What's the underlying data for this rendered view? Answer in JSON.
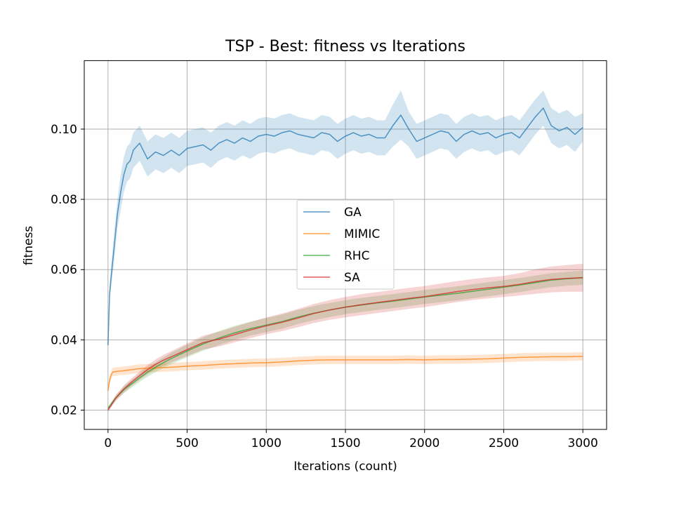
{
  "chart_data": {
    "type": "line",
    "title": "TSP - Best: fitness vs Iterations",
    "xlabel": "Iterations (count)",
    "ylabel": "fitness",
    "xlim": [
      -150,
      3150
    ],
    "ylim": [
      0.0145,
      0.1195
    ],
    "xticks": [
      0,
      500,
      1000,
      1500,
      2000,
      2500,
      3000
    ],
    "xtick_labels": [
      "0",
      "500",
      "1000",
      "1500",
      "2000",
      "2500",
      "3000"
    ],
    "yticks": [
      0.02,
      0.04,
      0.06,
      0.08,
      0.1
    ],
    "ytick_labels": [
      "0.02",
      "0.04",
      "0.06",
      "0.08",
      "0.10"
    ],
    "grid": true,
    "legend_position": "center",
    "series": [
      {
        "name": "GA",
        "color": "#1f77b4",
        "x": [
          0,
          10,
          20,
          40,
          60,
          80,
          100,
          120,
          140,
          160,
          180,
          200,
          250,
          300,
          350,
          400,
          450,
          500,
          550,
          600,
          650,
          700,
          750,
          800,
          850,
          900,
          950,
          1000,
          1050,
          1100,
          1150,
          1200,
          1250,
          1300,
          1350,
          1400,
          1450,
          1500,
          1550,
          1600,
          1650,
          1700,
          1750,
          1800,
          1850,
          1900,
          1950,
          2000,
          2050,
          2100,
          2150,
          2200,
          2250,
          2300,
          2350,
          2400,
          2450,
          2500,
          2550,
          2600,
          2650,
          2700,
          2750,
          2800,
          2850,
          2900,
          2950,
          3000
        ],
        "y": [
          0.0385,
          0.053,
          0.058,
          0.067,
          0.076,
          0.082,
          0.087,
          0.09,
          0.091,
          0.094,
          0.095,
          0.096,
          0.0915,
          0.0935,
          0.0925,
          0.094,
          0.0925,
          0.0945,
          0.095,
          0.0955,
          0.094,
          0.096,
          0.097,
          0.096,
          0.0975,
          0.0965,
          0.098,
          0.0985,
          0.098,
          0.099,
          0.0995,
          0.0985,
          0.098,
          0.0975,
          0.099,
          0.0985,
          0.0965,
          0.098,
          0.099,
          0.098,
          0.0985,
          0.0975,
          0.0975,
          0.101,
          0.104,
          0.1,
          0.0965,
          0.0975,
          0.0985,
          0.0995,
          0.099,
          0.0965,
          0.0985,
          0.0995,
          0.0985,
          0.099,
          0.0975,
          0.0985,
          0.099,
          0.0975,
          0.1005,
          0.1035,
          0.106,
          0.101,
          0.0995,
          0.1005,
          0.0985,
          0.1005
        ],
        "band": [
          0.001,
          0.002,
          0.003,
          0.004,
          0.004,
          0.005,
          0.005,
          0.005,
          0.005,
          0.005,
          0.005,
          0.005,
          0.005,
          0.005,
          0.005,
          0.005,
          0.005,
          0.005,
          0.005,
          0.005,
          0.005,
          0.005,
          0.005,
          0.005,
          0.005,
          0.005,
          0.005,
          0.005,
          0.005,
          0.005,
          0.005,
          0.005,
          0.005,
          0.005,
          0.005,
          0.005,
          0.005,
          0.005,
          0.005,
          0.005,
          0.005,
          0.005,
          0.005,
          0.006,
          0.007,
          0.005,
          0.005,
          0.005,
          0.005,
          0.005,
          0.005,
          0.005,
          0.005,
          0.005,
          0.005,
          0.005,
          0.005,
          0.005,
          0.005,
          0.005,
          0.005,
          0.005,
          0.005,
          0.005,
          0.005,
          0.005,
          0.005,
          0.004
        ]
      },
      {
        "name": "MIMIC",
        "color": "#ff7f0e",
        "x": [
          0,
          10,
          20,
          30,
          50,
          100,
          150,
          200,
          300,
          400,
          500,
          600,
          700,
          800,
          900,
          1000,
          1100,
          1200,
          1300,
          1400,
          1500,
          1600,
          1700,
          1800,
          1900,
          2000,
          2100,
          2200,
          2300,
          2400,
          2500,
          2600,
          2700,
          2800,
          2900,
          3000
        ],
        "y": [
          0.0255,
          0.0285,
          0.03,
          0.0308,
          0.031,
          0.0312,
          0.0315,
          0.0318,
          0.032,
          0.0322,
          0.0325,
          0.0327,
          0.033,
          0.0332,
          0.0334,
          0.0335,
          0.0337,
          0.034,
          0.0342,
          0.0343,
          0.0343,
          0.0343,
          0.0343,
          0.0343,
          0.0344,
          0.0343,
          0.0344,
          0.0344,
          0.0345,
          0.0346,
          0.0348,
          0.035,
          0.0351,
          0.0352,
          0.0352,
          0.0353
        ],
        "band": [
          0.0008,
          0.001,
          0.0012,
          0.0012,
          0.0012,
          0.0012,
          0.0012,
          0.0012,
          0.0012,
          0.0012,
          0.0012,
          0.0012,
          0.0012,
          0.0012,
          0.0012,
          0.0012,
          0.0012,
          0.0012,
          0.0012,
          0.0012,
          0.0012,
          0.0012,
          0.0012,
          0.0012,
          0.0012,
          0.0012,
          0.0012,
          0.0012,
          0.0012,
          0.0012,
          0.0012,
          0.0012,
          0.0012,
          0.0012,
          0.0012,
          0.0012
        ]
      },
      {
        "name": "RHC",
        "color": "#2ca02c",
        "x": [
          0,
          50,
          100,
          150,
          200,
          250,
          300,
          350,
          400,
          450,
          500,
          600,
          700,
          800,
          900,
          1000,
          1100,
          1200,
          1300,
          1400,
          1500,
          1600,
          1700,
          1800,
          1900,
          2000,
          2100,
          2200,
          2300,
          2400,
          2500,
          2600,
          2700,
          2800,
          2900,
          3000
        ],
        "y": [
          0.0205,
          0.0235,
          0.0258,
          0.0275,
          0.0292,
          0.0308,
          0.0322,
          0.0335,
          0.0347,
          0.0358,
          0.0368,
          0.0388,
          0.0405,
          0.042,
          0.0432,
          0.0442,
          0.0452,
          0.0465,
          0.0476,
          0.0485,
          0.0493,
          0.0499,
          0.0505,
          0.051,
          0.0516,
          0.0522,
          0.0527,
          0.0532,
          0.0538,
          0.0544,
          0.055,
          0.0556,
          0.0563,
          0.057,
          0.0574,
          0.0577
        ],
        "band": [
          0.0005,
          0.0008,
          0.001,
          0.0011,
          0.0012,
          0.0013,
          0.0014,
          0.0015,
          0.0016,
          0.0017,
          0.0018,
          0.0019,
          0.002,
          0.002,
          0.002,
          0.002,
          0.002,
          0.002,
          0.002,
          0.002,
          0.002,
          0.002,
          0.002,
          0.002,
          0.002,
          0.002,
          0.002,
          0.002,
          0.002,
          0.002,
          0.002,
          0.002,
          0.002,
          0.002,
          0.002,
          0.002
        ]
      },
      {
        "name": "SA",
        "color": "#d62728",
        "x": [
          0,
          50,
          100,
          150,
          200,
          250,
          300,
          350,
          400,
          450,
          500,
          600,
          700,
          800,
          900,
          1000,
          1100,
          1200,
          1300,
          1400,
          1500,
          1600,
          1700,
          1800,
          1900,
          2000,
          2100,
          2200,
          2300,
          2400,
          2500,
          2600,
          2700,
          2800,
          2900,
          3000
        ],
        "y": [
          0.02,
          0.0235,
          0.026,
          0.028,
          0.0298,
          0.0315,
          0.033,
          0.0342,
          0.0352,
          0.0362,
          0.0372,
          0.0392,
          0.0402,
          0.0415,
          0.0428,
          0.044,
          0.045,
          0.0462,
          0.0475,
          0.0485,
          0.0493,
          0.05,
          0.0506,
          0.0512,
          0.0518,
          0.0523,
          0.053,
          0.0537,
          0.0543,
          0.0548,
          0.0552,
          0.0558,
          0.0566,
          0.0572,
          0.0575,
          0.0577
        ],
        "band": [
          0.0005,
          0.0008,
          0.001,
          0.0011,
          0.0012,
          0.0013,
          0.0014,
          0.0015,
          0.0016,
          0.0017,
          0.0018,
          0.002,
          0.0021,
          0.0022,
          0.0023,
          0.0024,
          0.0025,
          0.0026,
          0.0027,
          0.0028,
          0.0029,
          0.003,
          0.003,
          0.003,
          0.003,
          0.003,
          0.003,
          0.003,
          0.003,
          0.003,
          0.003,
          0.0032,
          0.0035,
          0.0037,
          0.0038,
          0.004
        ]
      }
    ]
  }
}
